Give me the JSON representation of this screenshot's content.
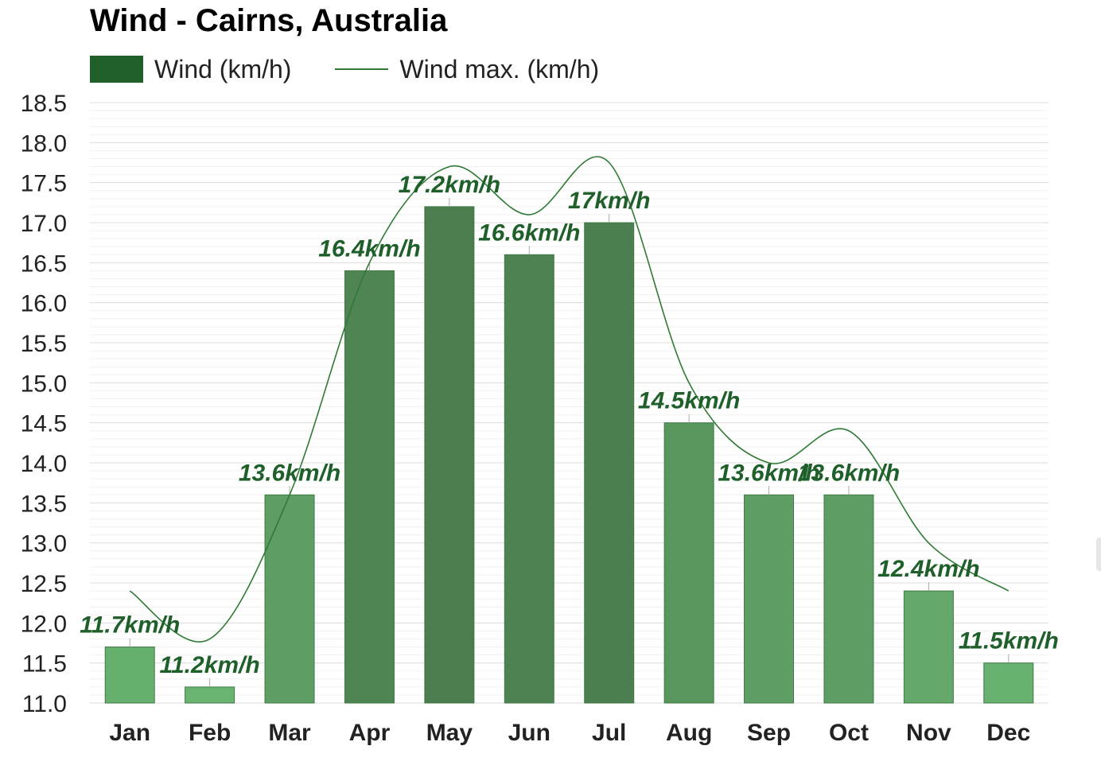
{
  "chart_data": {
    "type": "bar",
    "title": "Wind - Cairns, Australia",
    "xlabel": "",
    "ylabel": "",
    "categories": [
      "Jan",
      "Feb",
      "Mar",
      "Apr",
      "May",
      "Jun",
      "Jul",
      "Aug",
      "Sep",
      "Oct",
      "Nov",
      "Dec"
    ],
    "series": [
      {
        "name": "Wind (km/h)",
        "type": "bar",
        "values": [
          11.7,
          11.2,
          13.6,
          16.4,
          17.2,
          16.6,
          17.0,
          14.5,
          13.6,
          13.6,
          12.4,
          11.5
        ],
        "labels": [
          "11.7km/h",
          "11.2km/h",
          "13.6km/h",
          "16.4km/h",
          "17.2km/h",
          "16.6km/h",
          "17km/h",
          "14.5km/h",
          "13.6km/h",
          "13.6km/h",
          "12.4km/h",
          "11.5km/h"
        ]
      },
      {
        "name": "Wind max. (km/h)",
        "type": "line",
        "values": [
          12.4,
          11.8,
          13.6,
          16.5,
          17.7,
          17.1,
          17.75,
          15.0,
          14.0,
          14.4,
          13.0,
          12.4
        ]
      }
    ],
    "ylim": [
      11.0,
      18.5
    ],
    "yticks": [
      "11.0",
      "11.5",
      "12.0",
      "12.5",
      "13.0",
      "13.5",
      "14.0",
      "14.5",
      "15.0",
      "15.5",
      "16.0",
      "16.5",
      "17.0",
      "17.5",
      "18.0",
      "18.5"
    ],
    "grid": true,
    "legend": "top-left",
    "colors": {
      "legend_bar": "#1e5f2a",
      "line": "#2f7a34",
      "label": "#1e5f2a",
      "bar_light": "#6ab472",
      "bar_dark": "#4b7d4e"
    }
  }
}
